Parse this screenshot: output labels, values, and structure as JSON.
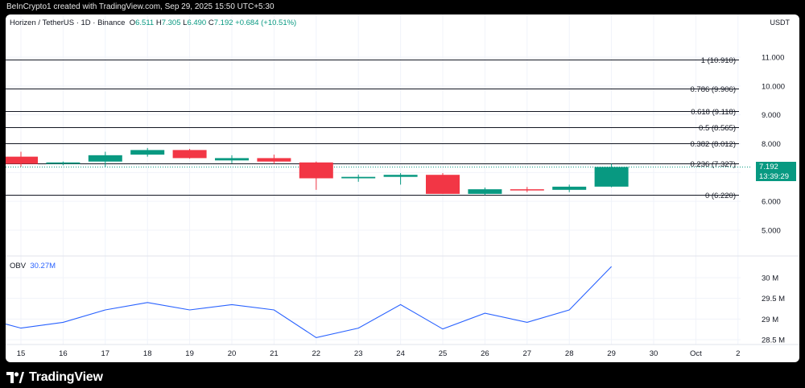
{
  "header_text": "BeInCrypto1 created with TradingView.com, Sep 29, 2025 15:50 UTC+5:30",
  "legend": {
    "symbol": "Horizen / TetherUS · 1D · Binance",
    "o_label": "O",
    "o": "6.511",
    "h_label": "H",
    "h": "7.305",
    "l_label": "L",
    "l": "6.490",
    "c_label": "C",
    "c": "7.192",
    "change": "+0.684 (+10.51%)"
  },
  "currency": "USDT",
  "price_tag": {
    "value": "7.192",
    "countdown": "13:39:29"
  },
  "obv_legend": {
    "label": "OBV",
    "value": "30.27M"
  },
  "footer": {
    "brand": "TradingView",
    "logo": "tradingview-logo-icon"
  },
  "colors": {
    "up": "#089981",
    "down": "#f23645",
    "obv": "#2962ff",
    "fib": "#131722"
  },
  "chart_data": [
    {
      "type": "candlestick",
      "x": [
        "15",
        "16",
        "17",
        "18",
        "19",
        "20",
        "21",
        "22",
        "23",
        "24",
        "25",
        "26",
        "27",
        "28",
        "29",
        "30",
        "Oct",
        "2"
      ],
      "candles": [
        {
          "x": "15",
          "o": 7.55,
          "h": 7.72,
          "l": 7.2,
          "c": 7.3
        },
        {
          "x": "16",
          "o": 7.3,
          "h": 7.38,
          "l": 7.25,
          "c": 7.35
        },
        {
          "x": "17",
          "o": 7.38,
          "h": 7.72,
          "l": 7.2,
          "c": 7.6
        },
        {
          "x": "18",
          "o": 7.62,
          "h": 7.85,
          "l": 7.55,
          "c": 7.78
        },
        {
          "x": "19",
          "o": 7.78,
          "h": 7.82,
          "l": 7.48,
          "c": 7.5
        },
        {
          "x": "20",
          "o": 7.42,
          "h": 7.6,
          "l": 7.32,
          "c": 7.5
        },
        {
          "x": "21",
          "o": 7.5,
          "h": 7.62,
          "l": 7.3,
          "c": 7.38
        },
        {
          "x": "22",
          "o": 7.35,
          "h": 7.38,
          "l": 6.4,
          "c": 6.8
        },
        {
          "x": "23",
          "o": 6.8,
          "h": 6.93,
          "l": 6.68,
          "c": 6.85
        },
        {
          "x": "24",
          "o": 6.85,
          "h": 6.98,
          "l": 6.58,
          "c": 6.92
        },
        {
          "x": "25",
          "o": 6.92,
          "h": 6.98,
          "l": 6.26,
          "c": 6.26
        },
        {
          "x": "26",
          "o": 6.26,
          "h": 6.48,
          "l": 6.22,
          "c": 6.42
        },
        {
          "x": "27",
          "o": 6.42,
          "h": 6.5,
          "l": 6.32,
          "c": 6.4
        },
        {
          "x": "28",
          "o": 6.4,
          "h": 6.58,
          "l": 6.32,
          "c": 6.51
        },
        {
          "x": "29",
          "o": 6.511,
          "h": 7.305,
          "l": 6.49,
          "c": 7.192
        }
      ],
      "ylim": [
        4.55,
        11.55
      ],
      "yticks": [
        "11.000",
        "10.000",
        "9.000",
        "8.000",
        "7.000",
        "6.000",
        "5.000"
      ],
      "fib_levels": [
        {
          "label": "1 (10.910)",
          "value": 10.91
        },
        {
          "label": "0.786 (9.906)",
          "value": 9.906
        },
        {
          "label": "0.618 (9.118)",
          "value": 9.118
        },
        {
          "label": "0.5 (8.565)",
          "value": 8.565
        },
        {
          "label": "0.382 (8.012)",
          "value": 8.012
        },
        {
          "label": "0.236 (7.327)",
          "value": 7.327
        },
        {
          "label": "0 (6.220)",
          "value": 6.22
        }
      ],
      "last_price": 7.192,
      "grid": true
    },
    {
      "type": "line",
      "name": "OBV",
      "x": [
        "15",
        "16",
        "17",
        "18",
        "19",
        "20",
        "21",
        "22",
        "23",
        "24",
        "25",
        "26",
        "27",
        "28",
        "29"
      ],
      "values": [
        28.78,
        28.92,
        29.22,
        29.4,
        29.22,
        29.35,
        29.22,
        28.55,
        28.78,
        29.35,
        28.76,
        29.14,
        28.92,
        29.22,
        30.27
      ],
      "ylim": [
        28.35,
        30.45
      ],
      "yticks": [
        {
          "label": "30 M",
          "value": 30
        },
        {
          "label": "29.5 M",
          "value": 29.5
        },
        {
          "label": "29 M",
          "value": 29
        },
        {
          "label": "28.5 M",
          "value": 28.5
        }
      ]
    }
  ]
}
